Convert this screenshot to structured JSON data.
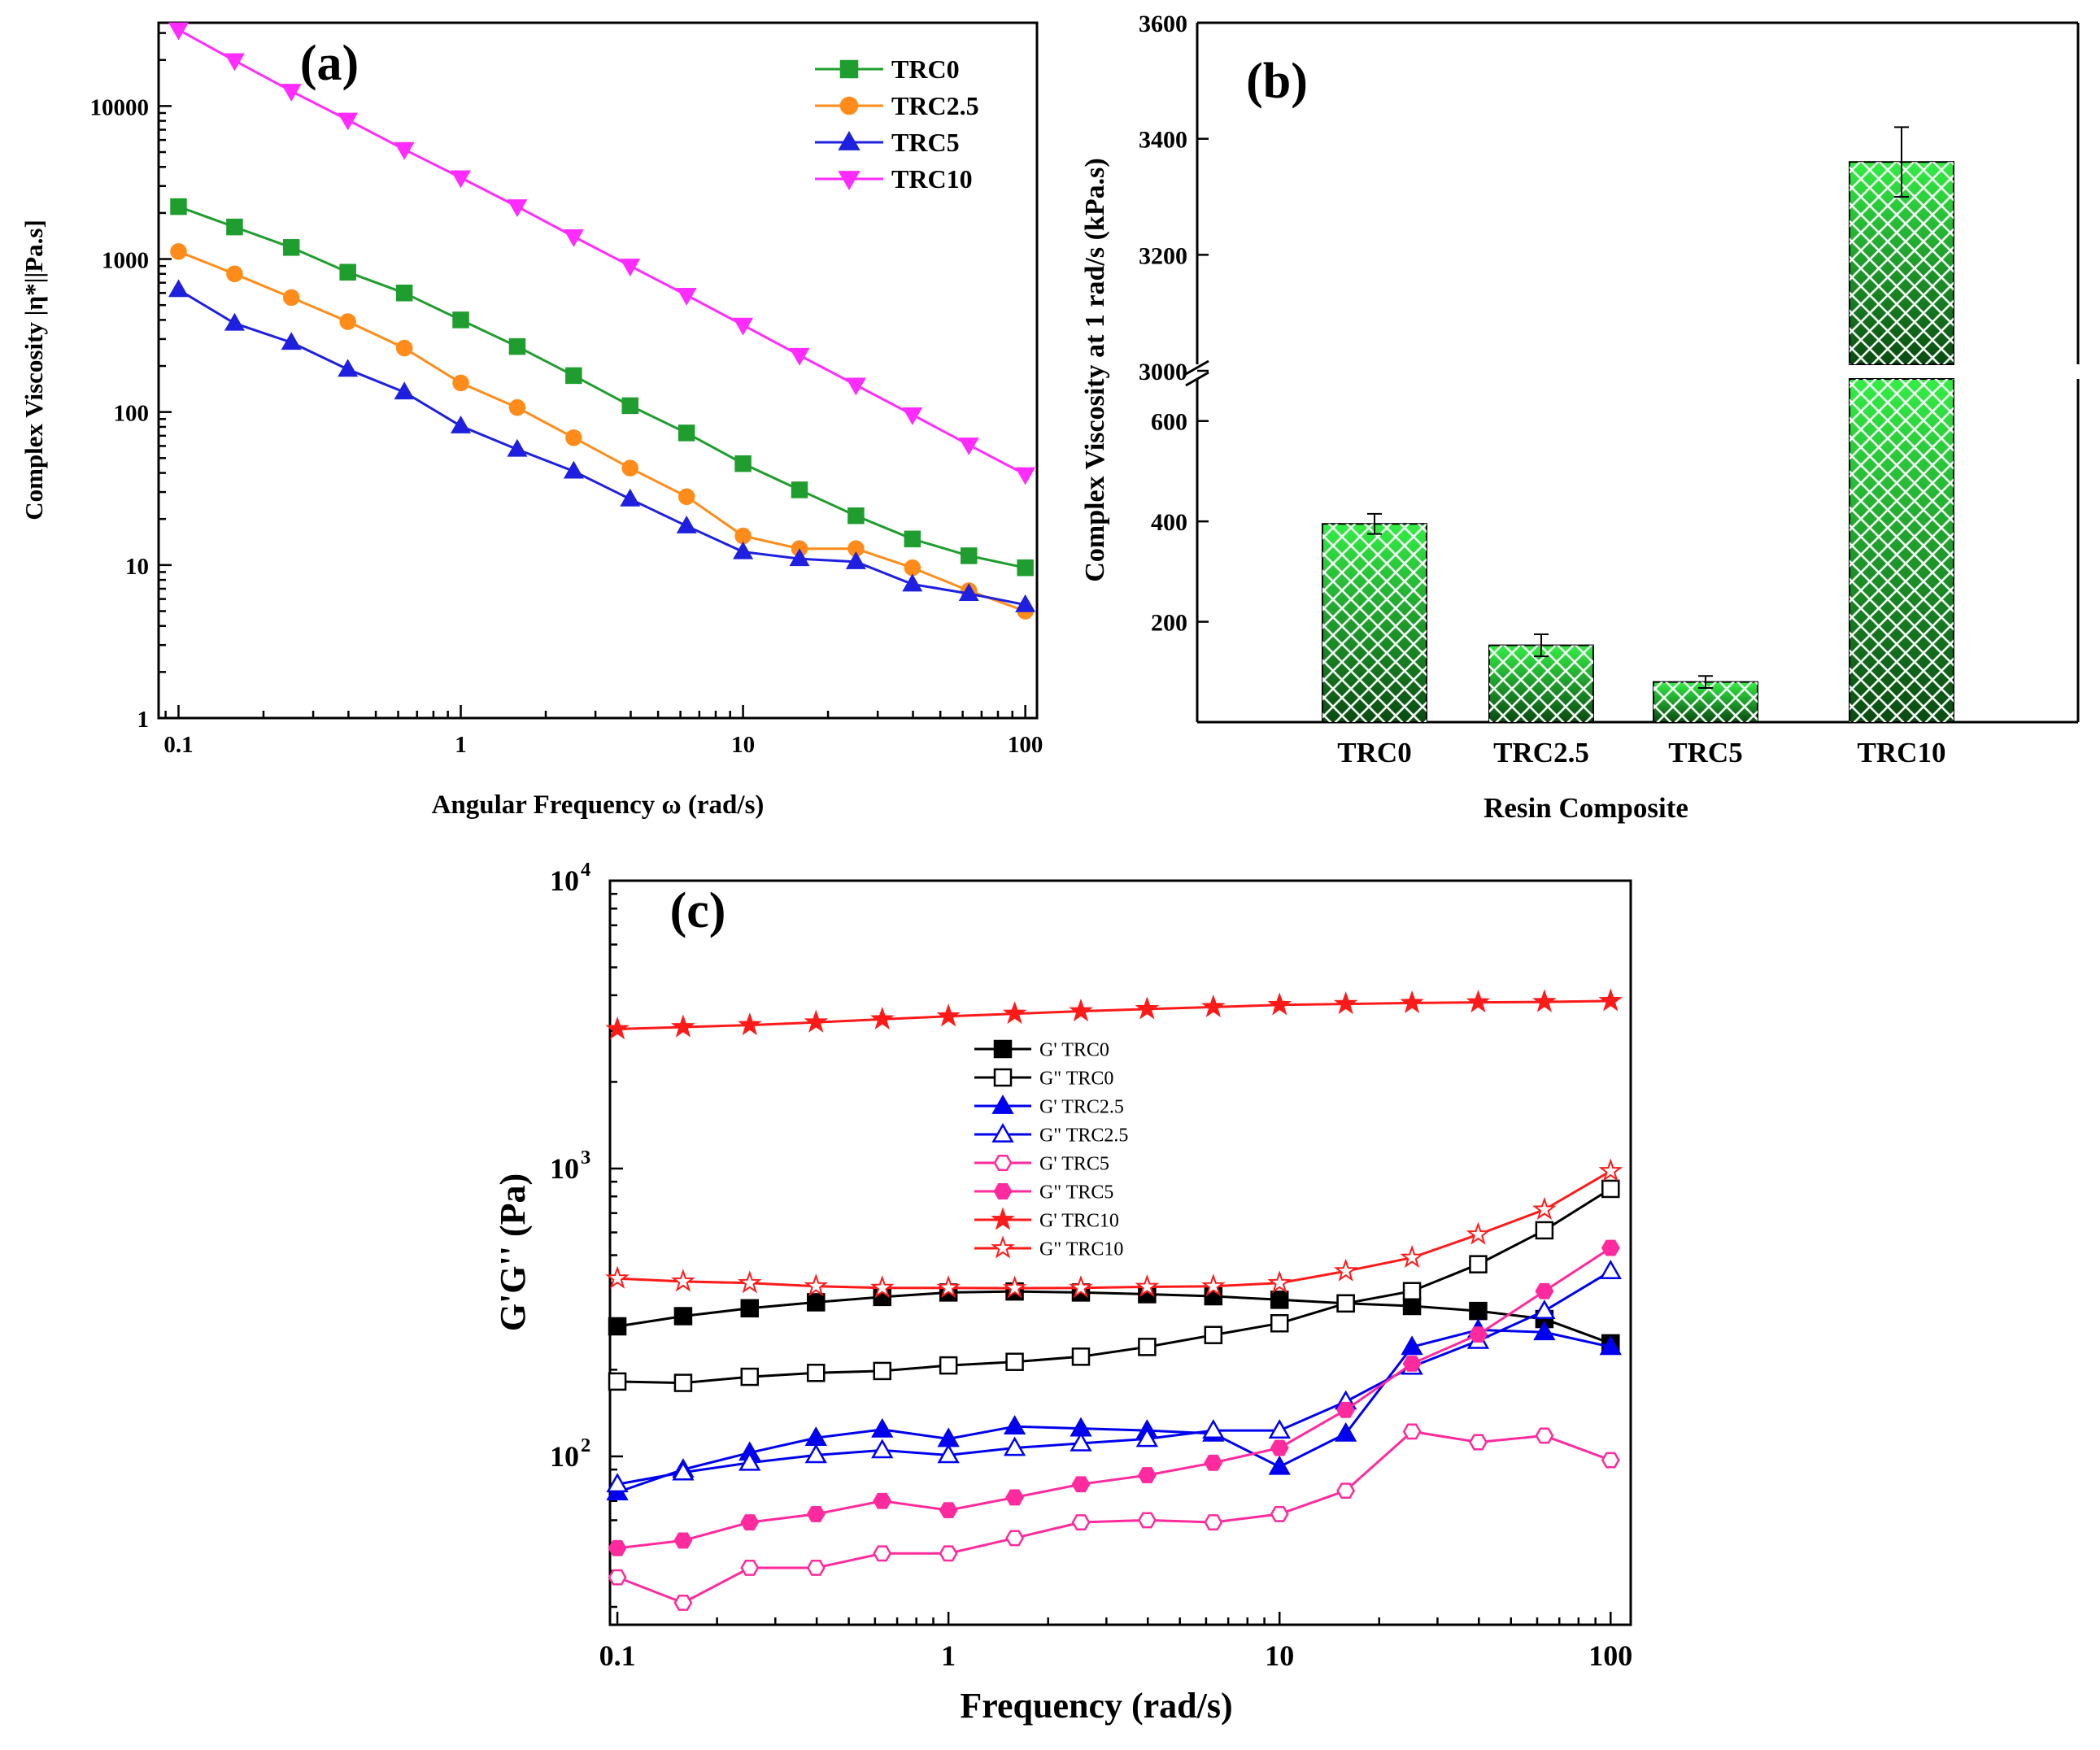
{
  "chart_data": [
    {
      "id": "a",
      "type": "line",
      "scale": "log-log",
      "panel_label": "(a)",
      "xlabel": "Angular Frequency ω (rad/s)",
      "ylabel": "Complex Viscosity |η*||Pa.s]",
      "xlim": [
        0.085,
        110
      ],
      "ylim": [
        1,
        35000
      ],
      "xticks": [
        {
          "v": 0.1,
          "label": "0.1"
        },
        {
          "v": 1,
          "label": "1"
        },
        {
          "v": 10,
          "label": "10"
        },
        {
          "v": 100,
          "label": "100"
        }
      ],
      "yticks": [
        {
          "v": 1,
          "label": "1"
        },
        {
          "v": 10,
          "label": "10"
        },
        {
          "v": 100,
          "label": "100"
        },
        {
          "v": 1000,
          "label": "1000"
        },
        {
          "v": 10000,
          "label": "10000"
        }
      ],
      "x": [
        0.1,
        0.158,
        0.251,
        0.398,
        0.631,
        1,
        1.585,
        2.512,
        3.981,
        6.31,
        10,
        15.85,
        25.12,
        39.81,
        63.1,
        100
      ],
      "series": [
        {
          "name": "TRC0",
          "color": "#1f9d2f",
          "marker": "square",
          "values": [
            2200,
            1620,
            1190,
            820,
            600,
            400,
            268,
            173,
            110,
            73,
            46,
            31,
            21,
            14.8,
            11.5,
            9.6
          ]
        },
        {
          "name": "TRC2.5",
          "color": "#ff8c1a",
          "marker": "circle",
          "values": [
            1120,
            800,
            560,
            390,
            262,
            155,
            107,
            68,
            43,
            28,
            15.5,
            12.8,
            12.8,
            9.6,
            6.8,
            5.0
          ]
        },
        {
          "name": "TRC5",
          "color": "#1f1fe0",
          "marker": "triangle-up",
          "values": [
            630,
            380,
            285,
            190,
            135,
            81,
            57,
            41,
            27,
            18,
            12.2,
            11,
            10.5,
            7.5,
            6.5,
            5.5
          ]
        },
        {
          "name": "TRC10",
          "color": "#ff2bff",
          "marker": "triangle-down",
          "values": [
            31500,
            19800,
            12500,
            8100,
            5200,
            3400,
            2200,
            1400,
            900,
            580,
            370,
            235,
            150,
            96,
            61,
            39
          ]
        }
      ]
    },
    {
      "id": "b",
      "type": "bar",
      "panel_label": "(b)",
      "xlabel": "Resin Composite",
      "ylabel": "Complex Viscosity at 1 rad/s (kPa.s)",
      "categories": [
        "TRC0",
        "TRC2.5",
        "TRC5",
        "TRC10"
      ],
      "values": [
        395,
        153,
        80,
        3360
      ],
      "errors": [
        20,
        22,
        12,
        60
      ],
      "axis_break": [
        700,
        3000
      ],
      "lower_ticks": [
        {
          "v": 200,
          "label": "200"
        },
        {
          "v": 400,
          "label": "400"
        },
        {
          "v": 600,
          "label": "600"
        }
      ],
      "upper_ticks": [
        {
          "v": 3000,
          "label": "3000"
        },
        {
          "v": 3200,
          "label": "3200"
        },
        {
          "v": 3400,
          "label": "3400"
        },
        {
          "v": 3600,
          "label": "3600"
        }
      ],
      "bar_color": "#22dd33"
    },
    {
      "id": "c",
      "type": "line",
      "scale": "log-log",
      "panel_label": "(c)",
      "xlabel": "Frequency (rad/s)",
      "ylabel": "G'G'' (Pa)",
      "xlim": [
        0.095,
        115
      ],
      "ylim": [
        26,
        10000
      ],
      "xticks": [
        {
          "v": 0.1,
          "label": "0.1"
        },
        {
          "v": 1,
          "label": "1"
        },
        {
          "v": 10,
          "label": "10"
        },
        {
          "v": 100,
          "label": "100"
        }
      ],
      "yticks": [
        {
          "v": 100,
          "base": "10",
          "exp": "2"
        },
        {
          "v": 1000,
          "base": "10",
          "exp": "3"
        },
        {
          "v": 10000,
          "base": "10",
          "exp": "4"
        }
      ],
      "x": [
        0.1,
        0.158,
        0.251,
        0.398,
        0.631,
        1,
        1.585,
        2.512,
        3.981,
        6.31,
        10,
        15.85,
        25.12,
        39.81,
        63.1,
        100
      ],
      "series": [
        {
          "name": "G' TRC0",
          "color": "#000000",
          "marker": "square",
          "filled": true,
          "values": [
            283,
            307,
            327,
            343,
            358,
            371,
            374,
            371,
            366,
            360,
            350,
            340,
            333,
            320,
            300,
            247
          ]
        },
        {
          "name": "G\" TRC0",
          "color": "#000000",
          "marker": "square",
          "filled": false,
          "values": [
            182,
            180,
            189,
            195,
            198,
            207,
            213,
            222,
            240,
            264,
            290,
            340,
            375,
            465,
            610,
            850
          ]
        },
        {
          "name": "G' TRC2.5",
          "color": "#0000ee",
          "marker": "triangle-up",
          "filled": true,
          "values": [
            75,
            90,
            103,
            116,
            124,
            115,
            127,
            125,
            123,
            120,
            92,
            120,
            240,
            275,
            270,
            240
          ]
        },
        {
          "name": "G\" TRC2.5",
          "color": "#0000ee",
          "marker": "triangle-up",
          "filled": false,
          "values": [
            80,
            88,
            95,
            101,
            105,
            101,
            107,
            111,
            115,
            123,
            123,
            155,
            205,
            252,
            320,
            440
          ]
        },
        {
          "name": "G' TRC5",
          "color": "#ff2a9d",
          "marker": "hexagon",
          "filled": false,
          "values": [
            38,
            31,
            41,
            41,
            46,
            46,
            52,
            59,
            60,
            59,
            63,
            76,
            122,
            112,
            118,
            97
          ]
        },
        {
          "name": "G\" TRC5",
          "color": "#ff2a9d",
          "marker": "hexagon",
          "filled": true,
          "values": [
            48,
            51,
            59,
            63,
            70,
            65,
            72,
            80,
            86,
            95,
            107,
            145,
            210,
            265,
            375,
            530
          ]
        },
        {
          "name": "G' TRC10",
          "color": "#ff1a1a",
          "marker": "star",
          "filled": true,
          "values": [
            3050,
            3100,
            3150,
            3220,
            3300,
            3380,
            3450,
            3520,
            3580,
            3640,
            3700,
            3730,
            3760,
            3780,
            3790,
            3820
          ]
        },
        {
          "name": "G\" TRC10",
          "color": "#ff1a1a",
          "marker": "star",
          "filled": false,
          "values": [
            415,
            405,
            400,
            390,
            385,
            385,
            384,
            385,
            388,
            390,
            400,
            440,
            490,
            590,
            720,
            980
          ]
        }
      ]
    }
  ]
}
